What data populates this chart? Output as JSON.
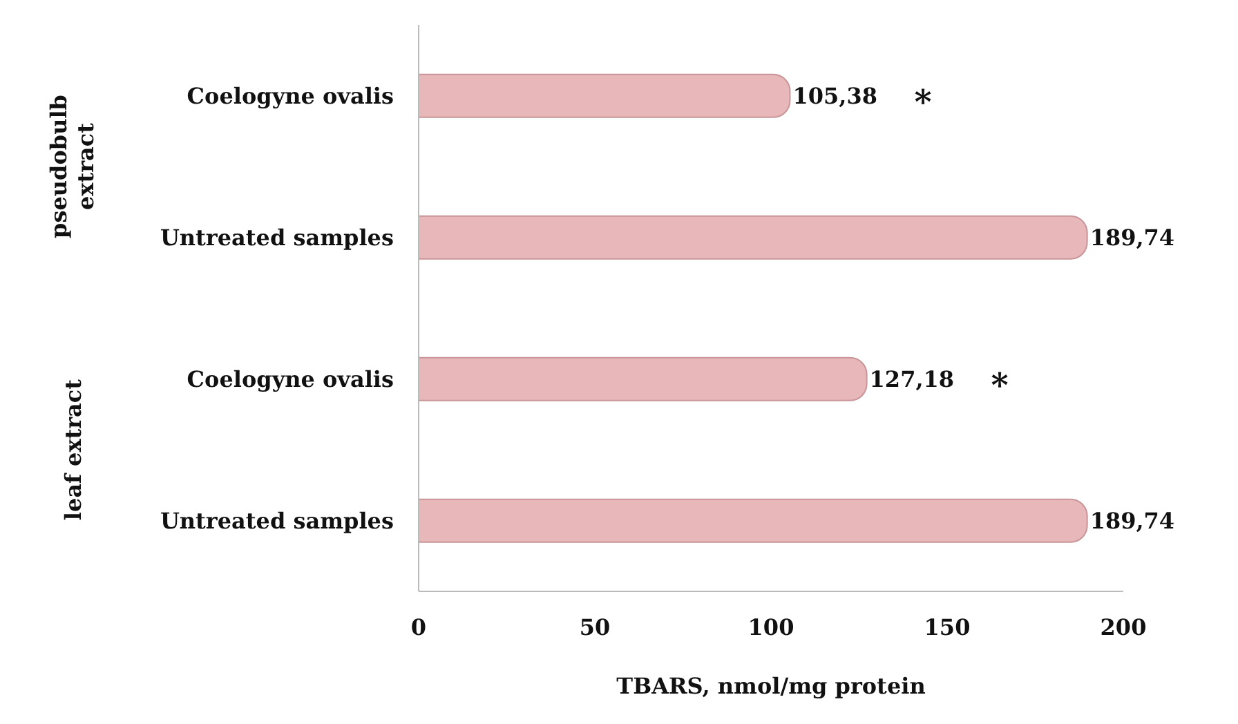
{
  "chart_data": {
    "type": "bar",
    "orientation": "horizontal",
    "categories": [
      "Coelogyne ovalis",
      "Untreated samples",
      "Coelogyne ovalis",
      "Untreated samples"
    ],
    "values": [
      105.38,
      189.74,
      127.18,
      189.74
    ],
    "value_labels": [
      "105,38",
      "189,74",
      "127,18",
      "189,74"
    ],
    "color": "#e8b7b9",
    "xlim": [
      0,
      200
    ],
    "xticks": [
      0,
      50,
      100,
      150,
      200
    ],
    "xlabel": "TBARS, nmol/mg protein",
    "grid": false,
    "legend": false,
    "annotations": [
      "pseudobulb extract",
      "leaf extract",
      "*",
      "*"
    ]
  }
}
